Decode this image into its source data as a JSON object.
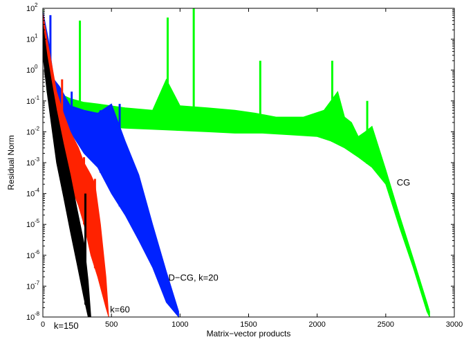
{
  "chart_data": {
    "type": "line",
    "xlabel": "Matrix−vector products",
    "ylabel": "Residual Norm",
    "xlim": [
      0,
      3000
    ],
    "ylim_log10": [
      -8,
      2
    ],
    "yscale": "log",
    "x_ticks": [
      "0",
      "500",
      "1000",
      "1500",
      "2000",
      "2500",
      "3000"
    ],
    "y_ticks": [
      {
        "base": "10",
        "exp": "2"
      },
      {
        "base": "10",
        "exp": "1"
      },
      {
        "base": "10",
        "exp": "0"
      },
      {
        "base": "10",
        "exp": "-1"
      },
      {
        "base": "10",
        "exp": "-2"
      },
      {
        "base": "10",
        "exp": "-3"
      },
      {
        "base": "10",
        "exp": "-4"
      },
      {
        "base": "10",
        "exp": "-5"
      },
      {
        "base": "10",
        "exp": "-6"
      },
      {
        "base": "10",
        "exp": "-7"
      },
      {
        "base": "10",
        "exp": "-8"
      }
    ],
    "grid": false,
    "series": [
      {
        "name": "CG",
        "color": "#00ff00",
        "envelope_upper": [
          [
            0,
            100
          ],
          [
            30,
            3
          ],
          [
            60,
            0.3
          ],
          [
            100,
            0.25
          ],
          [
            150,
            0.15
          ],
          [
            200,
            0.12
          ],
          [
            300,
            0.09
          ],
          [
            400,
            0.08
          ],
          [
            600,
            0.06
          ],
          [
            800,
            0.05
          ],
          [
            900,
            0.5
          ],
          [
            1000,
            0.07
          ],
          [
            1200,
            0.06
          ],
          [
            1400,
            0.05
          ],
          [
            1550,
            0.04
          ],
          [
            1700,
            0.03
          ],
          [
            1900,
            0.03
          ],
          [
            2050,
            0.05
          ],
          [
            2150,
            0.2
          ],
          [
            2200,
            0.03
          ],
          [
            2250,
            0.02
          ],
          [
            2300,
            0.007
          ],
          [
            2350,
            0.01
          ],
          [
            2400,
            0.015
          ],
          [
            2450,
            0.003
          ],
          [
            2500,
            0.0006
          ],
          [
            2600,
            2e-05
          ],
          [
            2700,
            8e-07
          ],
          [
            2800,
            3e-08
          ],
          [
            2820,
            1.5e-08
          ]
        ],
        "envelope_lower": [
          [
            0,
            10
          ],
          [
            30,
            0.2
          ],
          [
            60,
            0.05
          ],
          [
            100,
            0.03
          ],
          [
            200,
            0.02
          ],
          [
            400,
            0.015
          ],
          [
            600,
            0.013
          ],
          [
            800,
            0.012
          ],
          [
            1000,
            0.011
          ],
          [
            1200,
            0.01
          ],
          [
            1400,
            0.009
          ],
          [
            1600,
            0.009
          ],
          [
            1800,
            0.008
          ],
          [
            2000,
            0.007
          ],
          [
            2100,
            0.005
          ],
          [
            2200,
            0.003
          ],
          [
            2300,
            0.0015
          ],
          [
            2400,
            0.0007
          ],
          [
            2500,
            0.0002
          ],
          [
            2600,
            8e-06
          ],
          [
            2700,
            4e-07
          ],
          [
            2800,
            1.5e-08
          ],
          [
            2820,
            1e-08
          ]
        ],
        "peaks": [
          [
            270,
            40
          ],
          [
            910,
            50
          ],
          [
            1100,
            100
          ],
          [
            1585,
            2
          ],
          [
            2110,
            2
          ],
          [
            2365,
            0.1
          ]
        ]
      },
      {
        "name": "D−CG, k=20",
        "color": "#0022ff",
        "envelope_upper": [
          [
            0,
            80
          ],
          [
            40,
            10
          ],
          [
            80,
            0.5
          ],
          [
            120,
            0.3
          ],
          [
            200,
            0.07
          ],
          [
            300,
            0.05
          ],
          [
            400,
            0.04
          ],
          [
            500,
            0.08
          ],
          [
            550,
            0.02
          ],
          [
            600,
            0.005
          ],
          [
            700,
            0.0004
          ],
          [
            800,
            1e-05
          ],
          [
            900,
            3e-07
          ],
          [
            990,
            1.5e-08
          ]
        ],
        "envelope_lower": [
          [
            0,
            5
          ],
          [
            40,
            0.2
          ],
          [
            100,
            0.03
          ],
          [
            200,
            0.01
          ],
          [
            300,
            0.002
          ],
          [
            400,
            0.0007
          ],
          [
            500,
            0.0001
          ],
          [
            600,
            2e-05
          ],
          [
            700,
            3e-06
          ],
          [
            800,
            4e-07
          ],
          [
            900,
            3e-08
          ],
          [
            990,
            1e-08
          ]
        ],
        "peaks": [
          [
            55,
            60
          ],
          [
            210,
            0.2
          ],
          [
            420,
            0.05
          ],
          [
            560,
            0.08
          ]
        ]
      },
      {
        "name": "k=60",
        "color": "#ff2200",
        "envelope_upper": [
          [
            0,
            70
          ],
          [
            30,
            10
          ],
          [
            60,
            2
          ],
          [
            100,
            0.2
          ],
          [
            150,
            0.04
          ],
          [
            200,
            0.01
          ],
          [
            260,
            0.003
          ],
          [
            300,
            0.001
          ],
          [
            350,
            0.0004
          ],
          [
            380,
            0.0002
          ],
          [
            420,
            1e-05
          ],
          [
            460,
            2e-07
          ],
          [
            480,
            1e-08
          ]
        ],
        "envelope_lower": [
          [
            0,
            5
          ],
          [
            30,
            0.5
          ],
          [
            60,
            0.05
          ],
          [
            100,
            0.005
          ],
          [
            150,
            0.0009
          ],
          [
            200,
            0.0002
          ],
          [
            260,
            4e-05
          ],
          [
            300,
            1e-05
          ],
          [
            350,
            1e-06
          ],
          [
            400,
            2e-07
          ],
          [
            460,
            2e-08
          ],
          [
            480,
            1e-08
          ]
        ],
        "peaks": [
          [
            80,
            0.5
          ],
          [
            140,
            0.5
          ],
          [
            300,
            0.0015
          ],
          [
            380,
            0.0003
          ]
        ]
      },
      {
        "name": "k=150",
        "color": "#000000",
        "envelope_upper": [
          [
            0,
            30
          ],
          [
            30,
            3
          ],
          [
            60,
            0.5
          ],
          [
            100,
            0.05
          ],
          [
            150,
            0.004
          ],
          [
            200,
            0.0004
          ],
          [
            250,
            3e-05
          ],
          [
            300,
            2.5e-06
          ],
          [
            330,
            1.5e-07
          ],
          [
            350,
            1e-08
          ]
        ],
        "envelope_lower": [
          [
            0,
            3
          ],
          [
            30,
            0.2
          ],
          [
            60,
            0.02
          ],
          [
            100,
            0.001
          ],
          [
            150,
            8e-05
          ],
          [
            200,
            6e-06
          ],
          [
            250,
            5e-07
          ],
          [
            300,
            4e-08
          ],
          [
            330,
            1e-08
          ]
        ],
        "peaks": [
          [
            310,
            0.0001
          ]
        ]
      }
    ],
    "annotations": [
      {
        "text": "CG",
        "x": 2580,
        "y": 0.00018
      },
      {
        "text": "D−CG, k=20",
        "x": 915,
        "y": 1.5e-07
      },
      {
        "text": "k=60",
        "x": 490,
        "y": 1.4e-08
      },
      {
        "text": "k=150",
        "x": 80,
        "y": 4.2e-09
      }
    ]
  }
}
